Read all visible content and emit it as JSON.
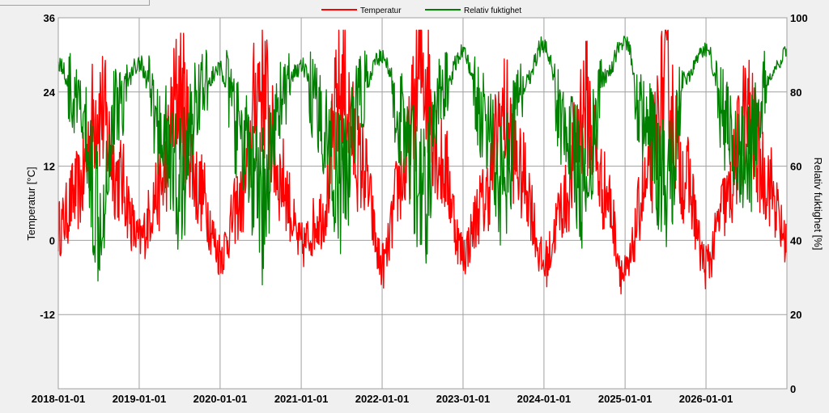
{
  "chart_data": {
    "type": "line",
    "legend": {
      "placement": "top-center",
      "entries": [
        "Temperatur",
        "Relativ fuktighet"
      ]
    },
    "y_left": {
      "label": "Temperatur [°C]",
      "range": [
        -24,
        36
      ],
      "ticks": [
        -12,
        0,
        12,
        24,
        36
      ],
      "tick_labels": [
        "-12",
        "0",
        "12",
        "24",
        "36"
      ]
    },
    "y_right": {
      "label": "Relativ fuktighet [%]",
      "range": [
        0,
        100
      ],
      "ticks": [
        0,
        20,
        40,
        60,
        80,
        100
      ],
      "tick_labels": [
        "0",
        "20",
        "40",
        "60",
        "80",
        "100"
      ]
    },
    "x": {
      "range": [
        "2018-01-01",
        "2027-01-01"
      ],
      "ticks": [
        "2018-01-01",
        "2019-01-01",
        "2020-01-01",
        "2021-01-01",
        "2022-01-01",
        "2023-01-01",
        "2024-01-01",
        "2025-01-01",
        "2026-01-01"
      ]
    },
    "grid": true,
    "series": [
      {
        "name": "Temperatur",
        "color": "#ff0000",
        "axis": "left",
        "x": [
          "2018-01-01",
          "2018-04-01",
          "2018-07-01",
          "2018-10-01",
          "2019-01-01",
          "2019-04-01",
          "2019-07-01",
          "2019-10-01",
          "2020-01-01",
          "2020-04-01",
          "2020-07-01",
          "2020-10-01",
          "2021-01-01",
          "2021-04-01",
          "2021-07-01",
          "2021-10-01",
          "2022-01-01",
          "2022-04-01",
          "2022-07-01",
          "2022-10-01",
          "2023-01-01",
          "2023-04-01",
          "2023-07-01",
          "2023-10-01",
          "2024-01-01",
          "2024-04-01",
          "2024-07-01",
          "2024-10-01",
          "2025-01-01",
          "2025-04-01",
          "2025-07-01",
          "2025-10-01",
          "2026-01-01",
          "2026-04-01",
          "2026-07-01",
          "2026-10-01",
          "2026-12-31"
        ],
        "values": [
          2,
          8,
          22,
          10,
          0,
          8,
          24,
          8,
          -2,
          6,
          26,
          10,
          -1,
          4,
          24,
          12,
          -4,
          10,
          28,
          12,
          -2,
          6,
          20,
          10,
          -4,
          6,
          22,
          8,
          -6,
          8,
          24,
          10,
          -4,
          6,
          20,
          10,
          0
        ]
      },
      {
        "name": "Relativ fuktighet",
        "color": "#008000",
        "axis": "right",
        "x": [
          "2018-01-01",
          "2018-04-01",
          "2018-07-01",
          "2018-10-01",
          "2019-01-01",
          "2019-04-01",
          "2019-07-01",
          "2019-10-01",
          "2020-01-01",
          "2020-04-01",
          "2020-07-01",
          "2020-10-01",
          "2021-01-01",
          "2021-04-01",
          "2021-07-01",
          "2021-10-01",
          "2022-01-01",
          "2022-04-01",
          "2022-07-01",
          "2022-10-01",
          "2023-01-01",
          "2023-04-01",
          "2023-07-01",
          "2023-10-01",
          "2024-01-01",
          "2024-04-01",
          "2024-07-01",
          "2024-10-01",
          "2025-01-01",
          "2025-04-01",
          "2025-07-01",
          "2025-10-01",
          "2026-01-01",
          "2026-04-01",
          "2026-07-01",
          "2026-10-01",
          "2026-12-31"
        ],
        "values": [
          88,
          75,
          50,
          78,
          88,
          70,
          55,
          80,
          86,
          68,
          48,
          78,
          87,
          72,
          54,
          80,
          90,
          72,
          50,
          80,
          91,
          74,
          56,
          82,
          93,
          72,
          55,
          84,
          94,
          70,
          52,
          84,
          92,
          72,
          58,
          82,
          90
        ]
      }
    ]
  }
}
